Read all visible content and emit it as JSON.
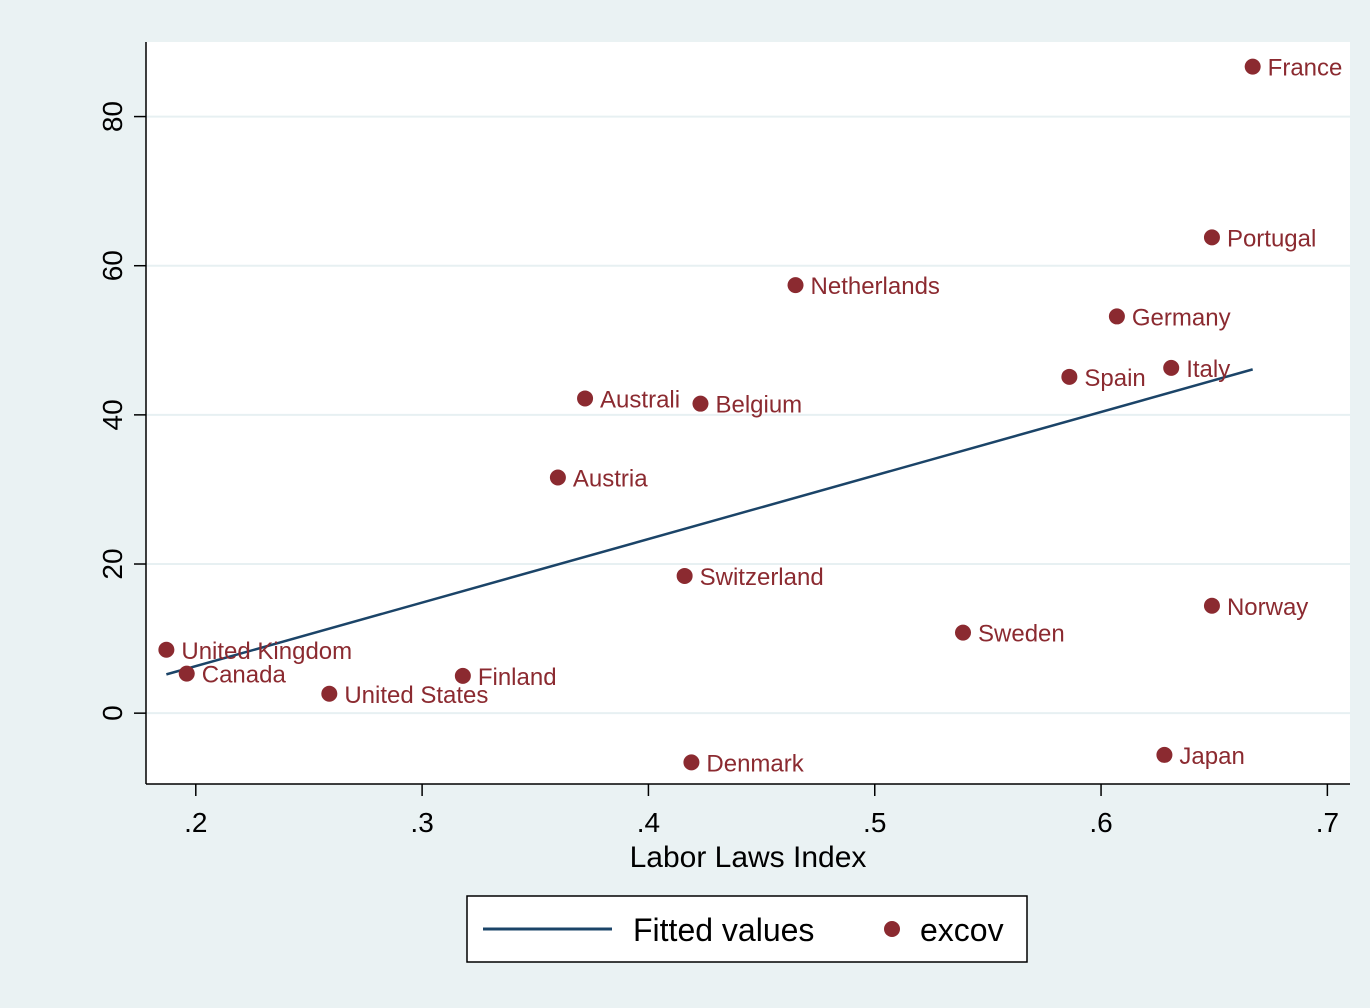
{
  "chart_data": {
    "type": "scatter",
    "title": "",
    "xlabel": "Labor Laws Index",
    "ylabel": "",
    "xlim": [
      0.178,
      0.71
    ],
    "ylim": [
      -9.5,
      90
    ],
    "xticks": [
      {
        "value": 0.2,
        "label": ".2"
      },
      {
        "value": 0.3,
        "label": ".3"
      },
      {
        "value": 0.4,
        "label": ".4"
      },
      {
        "value": 0.5,
        "label": ".5"
      },
      {
        "value": 0.6,
        "label": ".6"
      },
      {
        "value": 0.7,
        "label": ".7"
      }
    ],
    "yticks": [
      {
        "value": 0,
        "label": "0"
      },
      {
        "value": 20,
        "label": "20"
      },
      {
        "value": 40,
        "label": "40"
      },
      {
        "value": 60,
        "label": "60"
      },
      {
        "value": 80,
        "label": "80"
      }
    ],
    "grid": "horizontal",
    "legend": {
      "placement": "bottom",
      "entries": [
        "Fitted values",
        "excov"
      ]
    },
    "colors": {
      "points": "#8b2a30",
      "fit_line": "#1b4468",
      "background": "#eaf2f3",
      "plot_area": "#ffffff",
      "grid": "#e7f0f2"
    },
    "series": [
      {
        "name": "excov",
        "kind": "scatter",
        "points": [
          {
            "label": "France",
            "x": 0.667,
            "y": 86.7
          },
          {
            "label": "Portugal",
            "x": 0.649,
            "y": 63.8
          },
          {
            "label": "Netherlands",
            "x": 0.465,
            "y": 57.4
          },
          {
            "label": "Germany",
            "x": 0.607,
            "y": 53.2
          },
          {
            "label": "Italy",
            "x": 0.631,
            "y": 46.3
          },
          {
            "label": "Spain",
            "x": 0.586,
            "y": 45.1
          },
          {
            "label": "Australi",
            "x": 0.372,
            "y": 42.2
          },
          {
            "label": "Belgium",
            "x": 0.423,
            "y": 41.5
          },
          {
            "label": "Austria",
            "x": 0.36,
            "y": 31.6
          },
          {
            "label": "Switzerland",
            "x": 0.416,
            "y": 18.4
          },
          {
            "label": "Norway",
            "x": 0.649,
            "y": 14.4
          },
          {
            "label": "Sweden",
            "x": 0.539,
            "y": 10.8
          },
          {
            "label": "United Kingdom",
            "x": 0.187,
            "y": 8.5
          },
          {
            "label": "Canada",
            "x": 0.196,
            "y": 5.3
          },
          {
            "label": "Finland",
            "x": 0.318,
            "y": 5.0
          },
          {
            "label": "United States",
            "x": 0.259,
            "y": 2.6
          },
          {
            "label": "Japan",
            "x": 0.628,
            "y": -5.6
          },
          {
            "label": "Denmark",
            "x": 0.419,
            "y": -6.6
          }
        ]
      },
      {
        "name": "Fitted values",
        "kind": "line",
        "points": [
          {
            "x": 0.187,
            "y": 5.2
          },
          {
            "x": 0.667,
            "y": 46.1
          }
        ]
      }
    ]
  }
}
